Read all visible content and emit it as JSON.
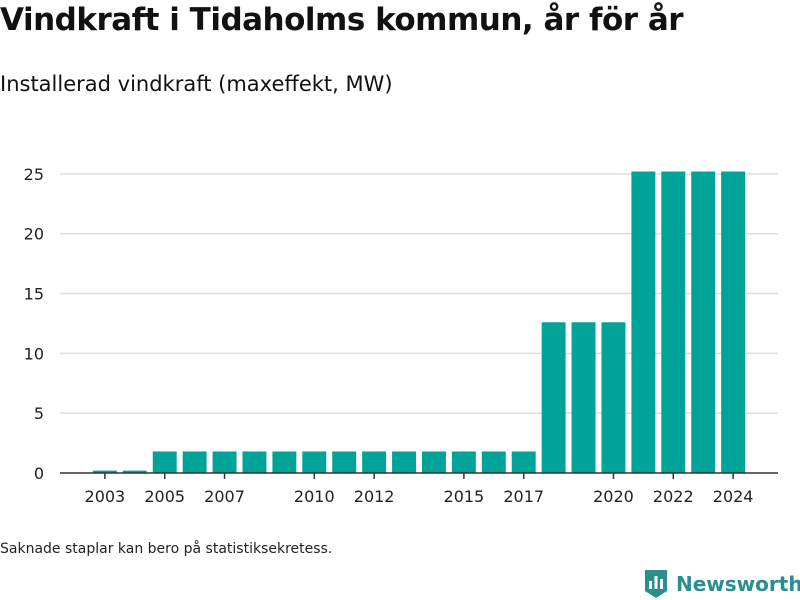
{
  "header": {
    "title": "Vindkraft i Tidaholms kommun, år för år",
    "subtitle": "Installerad vindkraft (maxeffekt, MW)"
  },
  "footer": {
    "note": "Saknade staplar kan bero på statistiksekretess.",
    "brand": "Newsworthy",
    "brand_icon": "bar-chart-shield-icon"
  },
  "colors": {
    "bar": "#00a398",
    "grid": "#dddddd",
    "axis": "#333333",
    "brand": "#2a8f8c"
  },
  "chart_data": {
    "type": "bar",
    "x": [
      2003,
      2004,
      2005,
      2006,
      2007,
      2008,
      2009,
      2010,
      2011,
      2012,
      2013,
      2014,
      2015,
      2016,
      2017,
      2018,
      2019,
      2020,
      2021,
      2022,
      2023,
      2024
    ],
    "values": [
      0.2,
      0.2,
      1.8,
      1.8,
      1.8,
      1.8,
      1.8,
      1.8,
      1.8,
      1.8,
      1.8,
      1.8,
      1.8,
      1.8,
      1.8,
      12.6,
      12.6,
      12.6,
      25.2,
      25.2,
      25.2,
      25.2
    ],
    "xticks": [
      2003,
      2005,
      2007,
      2010,
      2012,
      2015,
      2017,
      2020,
      2022,
      2024
    ],
    "yticks": [
      0,
      5,
      10,
      15,
      20,
      25
    ],
    "ylim": [
      0,
      27
    ],
    "xlim": [
      2001.5,
      2025.5
    ],
    "grid": true,
    "xlabel": "",
    "ylabel": ""
  }
}
